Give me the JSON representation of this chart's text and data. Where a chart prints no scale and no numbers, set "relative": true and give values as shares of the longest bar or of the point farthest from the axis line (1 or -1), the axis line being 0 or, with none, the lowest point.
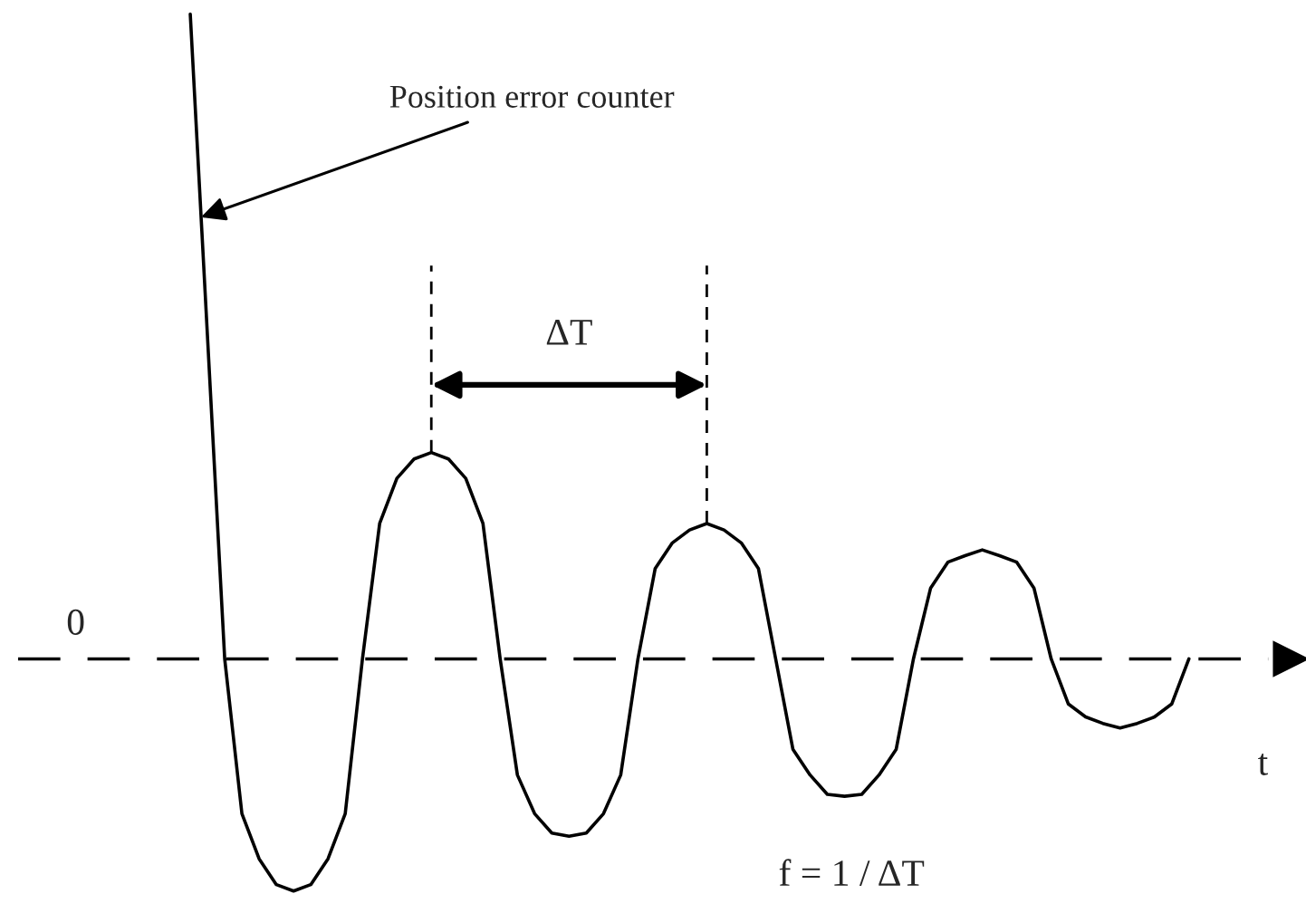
{
  "chart_data": {
    "type": "line",
    "relative": true,
    "xlabel": "t",
    "categories": [
      null,
      null,
      null,
      null,
      null,
      null,
      null,
      null,
      null,
      null,
      null,
      null,
      null,
      null,
      null,
      null,
      null,
      null,
      null,
      null,
      null,
      null,
      null,
      null,
      null,
      null,
      null,
      null,
      null,
      null,
      null,
      null,
      null,
      null,
      null,
      null,
      null,
      null,
      null,
      null,
      null,
      null,
      null,
      null,
      null,
      null,
      null,
      null,
      null,
      null,
      null,
      null,
      null,
      null,
      null,
      null,
      null,
      null,
      null
    ],
    "series": [
      {
        "color": "#000000",
        "values": [
          1.0,
          0.5,
          0,
          -0.24,
          -0.31,
          -0.35,
          -0.36,
          -0.35,
          -0.31,
          -0.24,
          0,
          0.21,
          0.28,
          0.31,
          0.32,
          0.31,
          0.28,
          0.21,
          0,
          -0.18,
          -0.24,
          -0.27,
          -0.275,
          -0.27,
          -0.24,
          -0.18,
          0,
          0.14,
          0.18,
          0.2,
          0.21,
          0.2,
          0.18,
          0.14,
          0,
          -0.14,
          -0.18,
          -0.21,
          -0.213,
          -0.21,
          -0.18,
          -0.14,
          0,
          0.11,
          0.15,
          0.16,
          0.169,
          0.16,
          0.15,
          0.11,
          0,
          -0.07,
          -0.09,
          -0.1,
          -0.107,
          -0.1,
          -0.09,
          -0.07,
          0
        ]
      }
    ],
    "line_style": "solid",
    "ref_lines": [
      {
        "axis": "y",
        "value": 0,
        "color": "#000000",
        "line_style": "dashed"
      }
    ],
    "annotations": [
      "Position error counter",
      "ΔT",
      "0",
      "f = 1 / ΔT"
    ]
  }
}
